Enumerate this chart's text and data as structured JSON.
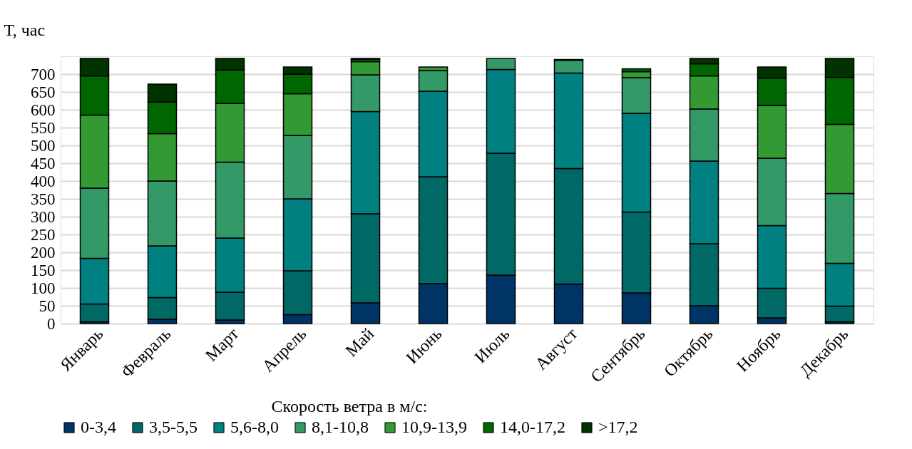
{
  "chart_data": {
    "type": "bar",
    "stacked": true,
    "ylabel": "Т, час",
    "legend_title": "Скорость ветра в м/с:",
    "categories": [
      "Январь",
      "Февраль",
      "Март",
      "Апрель",
      "Май",
      "Июнь",
      "Июль",
      "Август",
      "Сентябрь",
      "Октябрь",
      "Ноябрь",
      "Декабрь"
    ],
    "series": [
      {
        "name": "0-3,4",
        "color": "#003366",
        "values": [
          5,
          12,
          10,
          25,
          58,
          112,
          136,
          111,
          86,
          50,
          16,
          5
        ]
      },
      {
        "name": "3,5-5,5",
        "color": "#006966",
        "values": [
          50,
          61,
          78,
          123,
          250,
          300,
          342,
          324,
          227,
          174,
          83,
          44
        ]
      },
      {
        "name": "5,6-8,0",
        "color": "#008080",
        "values": [
          128,
          145,
          152,
          202,
          287,
          240,
          235,
          268,
          277,
          232,
          176,
          120
        ]
      },
      {
        "name": "8,1-10,8",
        "color": "#339966",
        "values": [
          197,
          182,
          213,
          178,
          103,
          58,
          31,
          36,
          100,
          146,
          189,
          196
        ]
      },
      {
        "name": "10,9-13,9",
        "color": "#339933",
        "values": [
          205,
          133,
          165,
          117,
          37,
          10,
          0,
          null,
          17,
          93,
          148,
          194
        ]
      },
      {
        "name": "14,0-17,2",
        "color": "#006600",
        "values": [
          110,
          89,
          94,
          55,
          7,
          0,
          0,
          2,
          8,
          34,
          77,
          132
        ]
      },
      {
        "name": ">17,2",
        "color": "#003300",
        "values": [
          49,
          50,
          32,
          20,
          2,
          0,
          0,
          0,
          0,
          15,
          31,
          53
        ]
      }
    ],
    "ylim": [
      0,
      750
    ],
    "yticks": [
      0,
      50,
      100,
      150,
      200,
      250,
      300,
      350,
      400,
      450,
      500,
      550,
      600,
      650,
      700
    ],
    "grid": "y",
    "legend": "bottom"
  }
}
